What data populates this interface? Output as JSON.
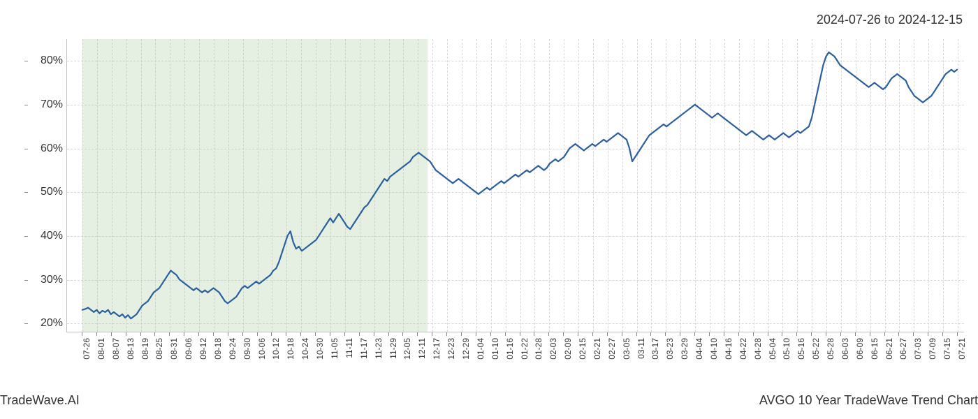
{
  "date_range": "2024-07-26 to 2024-12-15",
  "footer_left": "TradeWave.AI",
  "footer_right": "AVGO 10 Year TradeWave Trend Chart",
  "chart": {
    "type": "line",
    "background_color": "#ffffff",
    "grid_color": "#d8d8d8",
    "axis_color": "#c0c0c0",
    "line_color": "#2b5f9e",
    "line_width": 2.2,
    "highlight_band": {
      "start_label": "07-26",
      "end_label": "12-15",
      "color": "rgba(160, 200, 150, 0.28)"
    },
    "y_axis": {
      "min": 18,
      "max": 85,
      "ticks": [
        20,
        30,
        40,
        50,
        60,
        70,
        80
      ],
      "tick_labels": [
        "20%",
        "30%",
        "40%",
        "50%",
        "60%",
        "70%",
        "80%"
      ],
      "label_fontsize": 16
    },
    "x_axis": {
      "labels": [
        "07-26",
        "08-01",
        "08-07",
        "08-13",
        "08-19",
        "08-25",
        "08-31",
        "09-06",
        "09-12",
        "09-18",
        "09-24",
        "09-30",
        "10-06",
        "10-12",
        "10-18",
        "10-24",
        "10-30",
        "11-05",
        "11-11",
        "11-17",
        "11-23",
        "11-29",
        "12-05",
        "12-11",
        "12-17",
        "12-23",
        "12-29",
        "01-04",
        "01-10",
        "01-16",
        "01-22",
        "01-28",
        "02-03",
        "02-09",
        "02-15",
        "02-21",
        "02-27",
        "03-05",
        "03-11",
        "03-17",
        "03-23",
        "03-29",
        "04-04",
        "04-10",
        "04-16",
        "04-22",
        "04-28",
        "05-04",
        "05-10",
        "05-16",
        "05-22",
        "05-28",
        "06-03",
        "06-09",
        "06-15",
        "06-21",
        "06-27",
        "07-03",
        "07-09",
        "07-15",
        "07-21"
      ],
      "label_fontsize": 12
    },
    "series": {
      "values": [
        23,
        23.2,
        23.5,
        23,
        22.5,
        23,
        22.2,
        22.8,
        22.5,
        23,
        22,
        22.5,
        22,
        21.5,
        22,
        21.2,
        21.8,
        21,
        21.5,
        22,
        23,
        24,
        24.5,
        25,
        26,
        27,
        27.5,
        28,
        29,
        30,
        31,
        32,
        31.5,
        31,
        30,
        29.5,
        29,
        28.5,
        28,
        27.5,
        28,
        27.5,
        27,
        27.5,
        27,
        27.5,
        28,
        27.5,
        27,
        26,
        25,
        24.5,
        25,
        25.5,
        26,
        27,
        28,
        28.5,
        28,
        28.5,
        29,
        29.5,
        29,
        29.5,
        30,
        30.5,
        31,
        32,
        32.5,
        34,
        36,
        38,
        40,
        41,
        38.5,
        37,
        37.5,
        36.5,
        37,
        37.5,
        38,
        38.5,
        39,
        40,
        41,
        42,
        43,
        44,
        43,
        44,
        45,
        44,
        43,
        42,
        41.5,
        42.5,
        43.5,
        44.5,
        45.5,
        46.5,
        47,
        48,
        49,
        50,
        51,
        52,
        53,
        52.5,
        53.5,
        54,
        54.5,
        55,
        55.5,
        56,
        56.5,
        57,
        58,
        58.5,
        59,
        58.5,
        58,
        57.5,
        57,
        56,
        55,
        54.5,
        54,
        53.5,
        53,
        52.5,
        52,
        52.5,
        53,
        52.5,
        52,
        51.5,
        51,
        50.5,
        50,
        49.5,
        50,
        50.5,
        51,
        50.5,
        51,
        51.5,
        52,
        52.5,
        52,
        52.5,
        53,
        53.5,
        54,
        53.5,
        54,
        54.5,
        55,
        54.5,
        55,
        55.5,
        56,
        55.5,
        55,
        55.5,
        56.5,
        57,
        57.5,
        57,
        57.5,
        58,
        59,
        60,
        60.5,
        61,
        60.5,
        60,
        59.5,
        60,
        60.5,
        61,
        60.5,
        61,
        61.5,
        62,
        61.5,
        62,
        62.5,
        63,
        63.5,
        63,
        62.5,
        62,
        60,
        57,
        58,
        59,
        60,
        61,
        62,
        63,
        63.5,
        64,
        64.5,
        65,
        65.5,
        65,
        65.5,
        66,
        66.5,
        67,
        67.5,
        68,
        68.5,
        69,
        69.5,
        70,
        69.5,
        69,
        68.5,
        68,
        67.5,
        67,
        67.5,
        68,
        67.5,
        67,
        66.5,
        66,
        65.5,
        65,
        64.5,
        64,
        63.5,
        63,
        63.5,
        64,
        63.5,
        63,
        62.5,
        62,
        62.5,
        63,
        62.5,
        62,
        62.5,
        63,
        63.5,
        63,
        62.5,
        63,
        63.5,
        64,
        63.5,
        64,
        64.5,
        65,
        67,
        70,
        73,
        76,
        79,
        81,
        82,
        81.5,
        81,
        80,
        79,
        78.5,
        78,
        77.5,
        77,
        76.5,
        76,
        75.5,
        75,
        74.5,
        74,
        74.5,
        75,
        74.5,
        74,
        73.5,
        74,
        75,
        76,
        76.5,
        77,
        76.5,
        76,
        75.5,
        74,
        73,
        72,
        71.5,
        71,
        70.5,
        71,
        71.5,
        72,
        73,
        74,
        75,
        76,
        77,
        77.5,
        78,
        77.5,
        78
      ]
    }
  }
}
